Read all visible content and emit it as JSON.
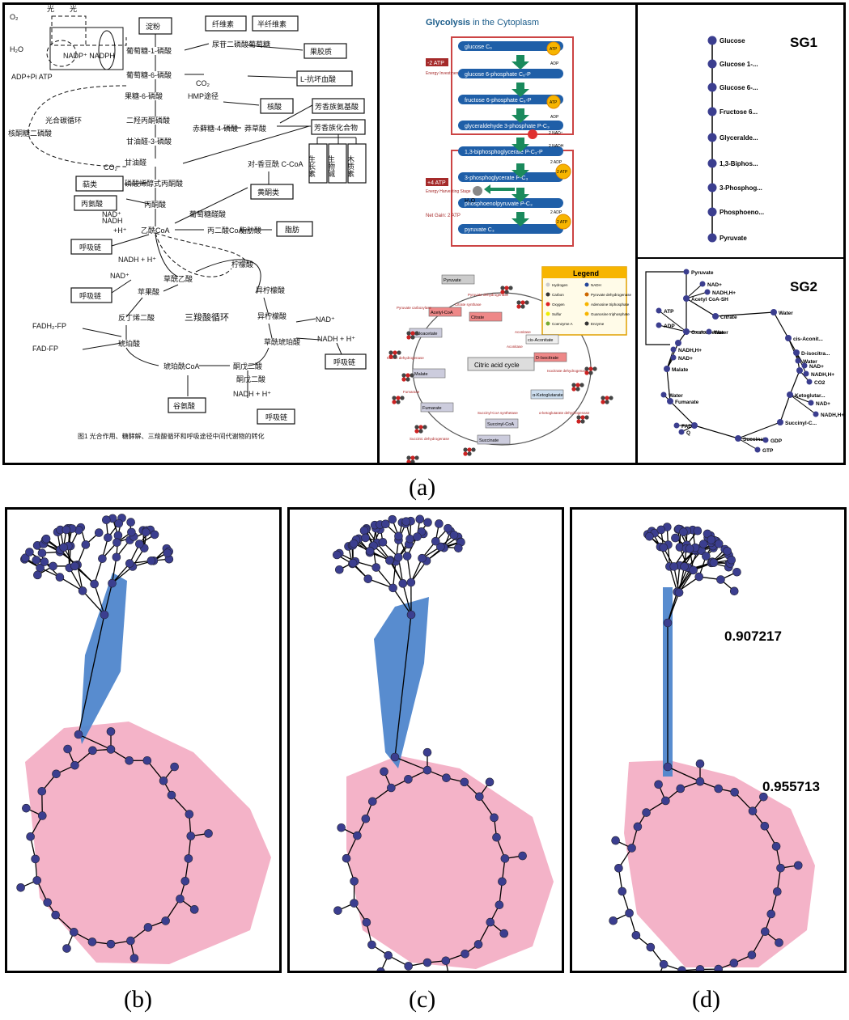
{
  "captions": {
    "a": "(a)",
    "b": "(b)",
    "c": "(c)",
    "d": "(d)"
  },
  "panel_a1": {
    "figure_caption": "图1  光合作用、糖酵解、三羧酸循环和呼吸途径中间代谢物的转化",
    "labels": {
      "starch": "淀粉",
      "cellulose": "纤维素",
      "hemicellulose": "半纤维素",
      "pectin": "果胶质",
      "ascorbic": "L-抗坏血酸",
      "nucleic": "核酸",
      "aromatic_aa": "芳香族氨基酸",
      "aromatic_cpd": "芳香族化合物",
      "growth": "生长素",
      "alkaloid": "生物碱",
      "lignin": "木质素",
      "flavonoid": "黄酮类",
      "fat": "脂肪",
      "pyruvate": "丙酮酸",
      "alanine": "丙氨酸",
      "acetylcoa": "乙酰CoA",
      "malonylcoa": "丙二酸CoA",
      "fattyacid": "脂肪酸",
      "carotene": "萜类",
      "resp1": "呼吸链",
      "resp2": "呼吸链",
      "resp3": "呼吸链",
      "resp4": "呼吸链",
      "citrate": "柠檬酸",
      "isocitrate": "异柠檬酸",
      "oxalosuccinate": "草酰琥珀酸",
      "ketoglutarate": "酮戊二酸",
      "succinylcoa": "琥珀酰CoA",
      "succinate": "琥珀酸",
      "fumarate": "反丁烯二酸",
      "malate": "苹果酸",
      "oxaloacetate": "草酰乙酸",
      "glutamate": "谷氨酸",
      "tca": "三羧酸循环",
      "calvin": "光合碳循环",
      "glucose1p": "葡萄糖-1-磷酸",
      "glucose6p": "葡萄糖-6-磷酸",
      "fructose6p": "果糖-6-磷酸",
      "fbp": "二羟丙酮磷酸",
      "g3p": "甘油醛-3-磷酸",
      "pep": "磷酸烯醇式丙酮酸",
      "shikimate": "莽草酸",
      "erythrose": "赤藓糖-4-磷酸",
      "hmp": "HMP途径",
      "co2a": "CO₂",
      "co2b": "CO₂",
      "nadh1": "NADH",
      "nadh_h": "+H⁺",
      "nadh2": "NADH + H⁺",
      "nad1": "NAD⁺",
      "nad2": "NAD⁺",
      "fadh": "FADH₂-FP",
      "fad": "FAD-FP",
      "adp": "ADP+Pi ATP",
      "nadp": "NADP⁺ NADPH",
      "o2": "O₂",
      "h2o": "H₂O",
      "light1": "光",
      "light2": "光",
      "ribulose": "核酮糖二磷酸",
      "udpglucose": "尿苷二磷酸葡萄糖",
      "coumaroyl": "对-香豆酰 C-CoA",
      "sugar": "葡萄糖醛酸",
      "mal_nadh": "NADH + H⁺",
      "isocit_nadh": "NADH + H⁺",
      "glyc": "甘油醛"
    }
  },
  "panel_a2": {
    "title_bold": "Glycolysis",
    "title_rest": " in the Cytoplasm",
    "steps": [
      "glucose  C₆",
      "glucose 6-phosphate  C₆-P",
      "fructose 6-phosphate  C₆-P",
      "glyceraldehyde 3-phosphate P-C₃",
      "1,3-biphosphoglycerate  P-C₃-P",
      "3-phosphoglycerate  P-C₃",
      "phosphoenolpyruvate  P-C₃",
      "pyruvate  C₃"
    ],
    "stage1": "-2 ATP",
    "stage1_desc": "Energy Investment Stage",
    "stage2": "+4 ATP",
    "stage2_desc": "Energy Harvesting Stage",
    "net": "Net Gain: 2 ATP",
    "atp": "ATP",
    "adp": "ADP",
    "nad": "2 NAD⁺",
    "nadh": "2 NADH",
    "adp2": "2 ADP",
    "atp2": "2 ATP",
    "h2o": "H₂O",
    "legend_title": "Legend",
    "cycle_title": "Citric acid cycle",
    "cycle_nodes": [
      "Pyruvate",
      "Acetyl-CoA",
      "Citrate",
      "cis-Aconitate",
      "D-Isocitrate",
      "α-Ketoglutarate",
      "Succinyl-CoA",
      "Succinate",
      "Fumarate",
      "Malate",
      "Oxaloacetate"
    ],
    "enzymes": [
      "Citrate synthase",
      "Aconitase",
      "Isocitrate dehydrogenase",
      "α-ketoglutarate dehydrogenase",
      "Succinyl-CoA synthetase",
      "Succinic dehydrogenase",
      "Fumarase",
      "Malate dehydrogenase",
      "Pyruvate carboxylase",
      "Pyruvate dehydrogenase",
      "Aconitase"
    ],
    "legend_items": [
      "Hydrogen",
      "Carbon",
      "Oxygen",
      "Sulfur",
      "Coenzyme A",
      "NADH",
      "Pyruvate dehydrogenase",
      "Adenosine triphosphate",
      "Guanosine triphosphate",
      "Enzyme"
    ]
  },
  "panel_a3": {
    "sg1_title": "SG1",
    "sg1_nodes": [
      "Glucose",
      "Glucose 1-...",
      "Glucose 6-...",
      "Fructose 6...",
      "Glyceralde...",
      "1,3-Biphos...",
      "3-Phosphog...",
      "Phosphoeno...",
      "Pyruvate"
    ],
    "sg2_title": "SG2",
    "sg2_labels": {
      "pyruvate": "Pyruvate",
      "nadp": "NAD+",
      "nadhh": "NADH,H+",
      "acetyl": "Acetyl CoA-SH",
      "citrate": "Citrate",
      "water1": "Water",
      "atp": "ATP",
      "adp": "ADP",
      "oxalo": "Oxaloacetate",
      "water2": "Water",
      "nadh2": "NADH,H+",
      "nad2": "NAD+",
      "cisacon": "cis-Aconit...",
      "water3": "Water",
      "disoc": "D-isocitra...",
      "nad3": "NAD+",
      "nadh3": "NADH,H+",
      "co2": "CO2",
      "malate": "Malate",
      "water4": "Water",
      "fumarate": "Fumarate",
      "ketoglut": "Ketoglutar...",
      "nad4": "NAD+",
      "nadh4": "NADH,H+",
      "succcoa": "Succinyl-C...",
      "fad": "FAD",
      "q": "Q",
      "succinate": "Succinate",
      "gdp": "GDP",
      "gtp": "GTP"
    }
  },
  "panel_d": {
    "value1": "0.907217",
    "value2": "0.955713"
  },
  "colors": {
    "node": "#3b3e8f",
    "hull_pink": "#f4b3c8",
    "hull_blue": "#4f86cc",
    "edge": "#000000"
  }
}
